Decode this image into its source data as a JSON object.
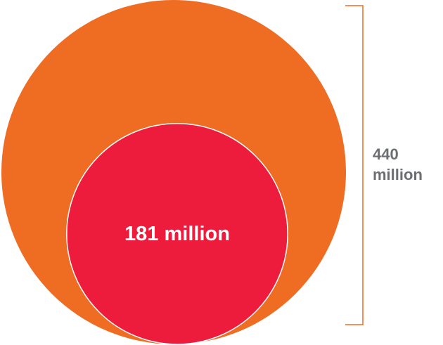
{
  "chart_data": {
    "type": "nested-bubble",
    "series": [
      {
        "name": "",
        "value": 440,
        "label_line1": "440",
        "label_line2": "million",
        "color": "#ef6c23"
      },
      {
        "name": "",
        "value": 181,
        "label": "181 million",
        "color": "#ed1b3c"
      }
    ],
    "bracket_color": "#ef6c23",
    "outer_label_color": "#6d6e71",
    "inner_label_color": "#ffffff"
  }
}
